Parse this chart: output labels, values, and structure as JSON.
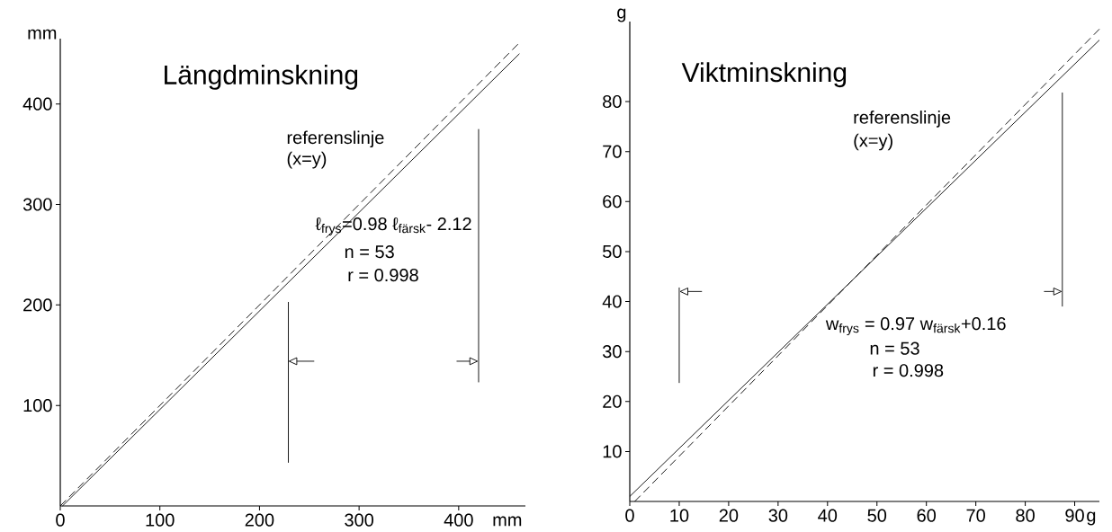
{
  "chart_data": [
    {
      "type": "line",
      "title": "Längdminskning",
      "xlabel": "mm",
      "ylabel": "mm",
      "xlim": [
        0,
        467
      ],
      "ylim": [
        0,
        465
      ],
      "xticks": [
        0,
        100,
        200,
        300,
        400
      ],
      "yticks": [
        100,
        200,
        300,
        400
      ],
      "series": [
        {
          "color": "#000000",
          "line_style": "solid",
          "x": [
            2.2,
            461
          ],
          "values": [
            0,
            450
          ]
        },
        {
          "color": "#000000",
          "line_style": "dashed",
          "x": [
            0,
            460
          ],
          "values": [
            0,
            460
          ]
        },
        {
          "color": "#000000",
          "line_style": "solid",
          "x": [
            229,
            229
          ],
          "values": [
            43,
            203
          ]
        },
        {
          "color": "#000000",
          "line_style": "solid",
          "x": [
            420,
            420
          ],
          "values": [
            123,
            375
          ]
        }
      ],
      "annotations": [
        "referenslinje",
        "(x=y)",
        "ℓ$_{frys}$=0.98 ℓ$_{färsk}$- 2.12",
        "n = 53",
        "r = 0.998"
      ]
    },
    {
      "type": "line",
      "title": "Viktminskning",
      "xlabel": "g",
      "ylabel": "g",
      "xlim": [
        0,
        95
      ],
      "ylim": [
        0,
        96
      ],
      "xticks": [
        0,
        10,
        20,
        30,
        40,
        50,
        60,
        70,
        80,
        90
      ],
      "yticks": [
        10,
        20,
        30,
        40,
        50,
        60,
        70,
        80
      ],
      "series": [
        {
          "color": "#000000",
          "line_style": "solid",
          "x": [
            0,
            95
          ],
          "values": [
            1,
            92.3
          ]
        },
        {
          "color": "#000000",
          "line_style": "dashed",
          "x": [
            1,
            95
          ],
          "values": [
            0,
            94.5
          ]
        },
        {
          "color": "#000000",
          "line_style": "solid",
          "x": [
            10,
            10
          ],
          "values": [
            23.7,
            42.8
          ]
        },
        {
          "color": "#000000",
          "line_style": "solid",
          "x": [
            87.5,
            87.5
          ],
          "values": [
            39,
            81.8
          ]
        }
      ],
      "annotations": [
        "referenslinje",
        "(x=y)",
        "w$_{frys}$ = 0.97 w$_{färsk}$+0.16",
        "n = 53",
        "r = 0.998"
      ]
    }
  ]
}
